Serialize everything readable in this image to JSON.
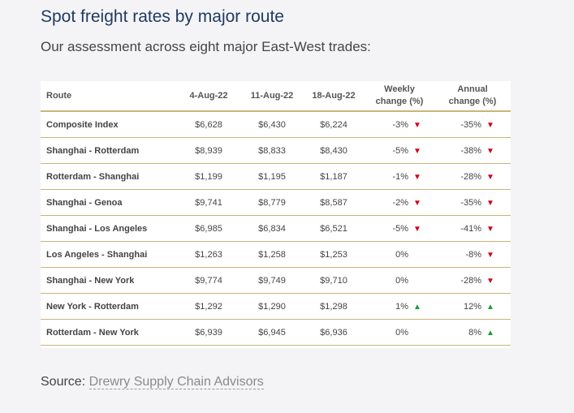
{
  "title": "Spot freight rates by major route",
  "subtitle": "Our assessment across eight major East-West trades:",
  "source_label": "Source:",
  "source_link": "Drewry Supply Chain Advisors",
  "colors": {
    "down": "#d0021b",
    "up": "#1a9a3c",
    "rule": "#c9b47a",
    "title": "#1f3b63"
  },
  "chart_data": {
    "type": "table",
    "columns": [
      "Route",
      "4-Aug-22",
      "11-Aug-22",
      "18-Aug-22",
      "Weekly\nchange (%)",
      "Annual\nchange (%)"
    ],
    "rows": [
      {
        "route": "Composite Index",
        "d1": "$6,628",
        "d2": "$6,430",
        "d3": "$6,224",
        "weekly": "-3%",
        "weekly_dir": "down",
        "annual": "-35%",
        "annual_dir": "down"
      },
      {
        "route": "Shanghai - Rotterdam",
        "d1": "$8,939",
        "d2": "$8,833",
        "d3": "$8,430",
        "weekly": "-5%",
        "weekly_dir": "down",
        "annual": "-38%",
        "annual_dir": "down"
      },
      {
        "route": "Rotterdam - Shanghai",
        "d1": "$1,199",
        "d2": "$1,195",
        "d3": "$1,187",
        "weekly": "-1%",
        "weekly_dir": "down",
        "annual": "-28%",
        "annual_dir": "down"
      },
      {
        "route": "Shanghai - Genoa",
        "d1": "$9,741",
        "d2": "$8,779",
        "d3": "$8,587",
        "weekly": "-2%",
        "weekly_dir": "down",
        "annual": "-35%",
        "annual_dir": "down"
      },
      {
        "route": "Shanghai - Los Angeles",
        "d1": "$6,985",
        "d2": "$6,834",
        "d3": "$6,521",
        "weekly": "-5%",
        "weekly_dir": "down",
        "annual": "-41%",
        "annual_dir": "down"
      },
      {
        "route": "Los Angeles - Shanghai",
        "d1": "$1,263",
        "d2": "$1,258",
        "d3": "$1,253",
        "weekly": "0%",
        "weekly_dir": "",
        "annual": "-8%",
        "annual_dir": "down"
      },
      {
        "route": "Shanghai - New York",
        "d1": "$9,774",
        "d2": "$9,749",
        "d3": "$9,710",
        "weekly": "0%",
        "weekly_dir": "",
        "annual": "-28%",
        "annual_dir": "down"
      },
      {
        "route": "New York - Rotterdam",
        "d1": "$1,292",
        "d2": "$1,290",
        "d3": "$1,298",
        "weekly": "1%",
        "weekly_dir": "up",
        "annual": "12%",
        "annual_dir": "up"
      },
      {
        "route": "Rotterdam - New York",
        "d1": "$6,939",
        "d2": "$6,945",
        "d3": "$6,936",
        "weekly": "0%",
        "weekly_dir": "",
        "annual": "8%",
        "annual_dir": "up"
      }
    ]
  }
}
